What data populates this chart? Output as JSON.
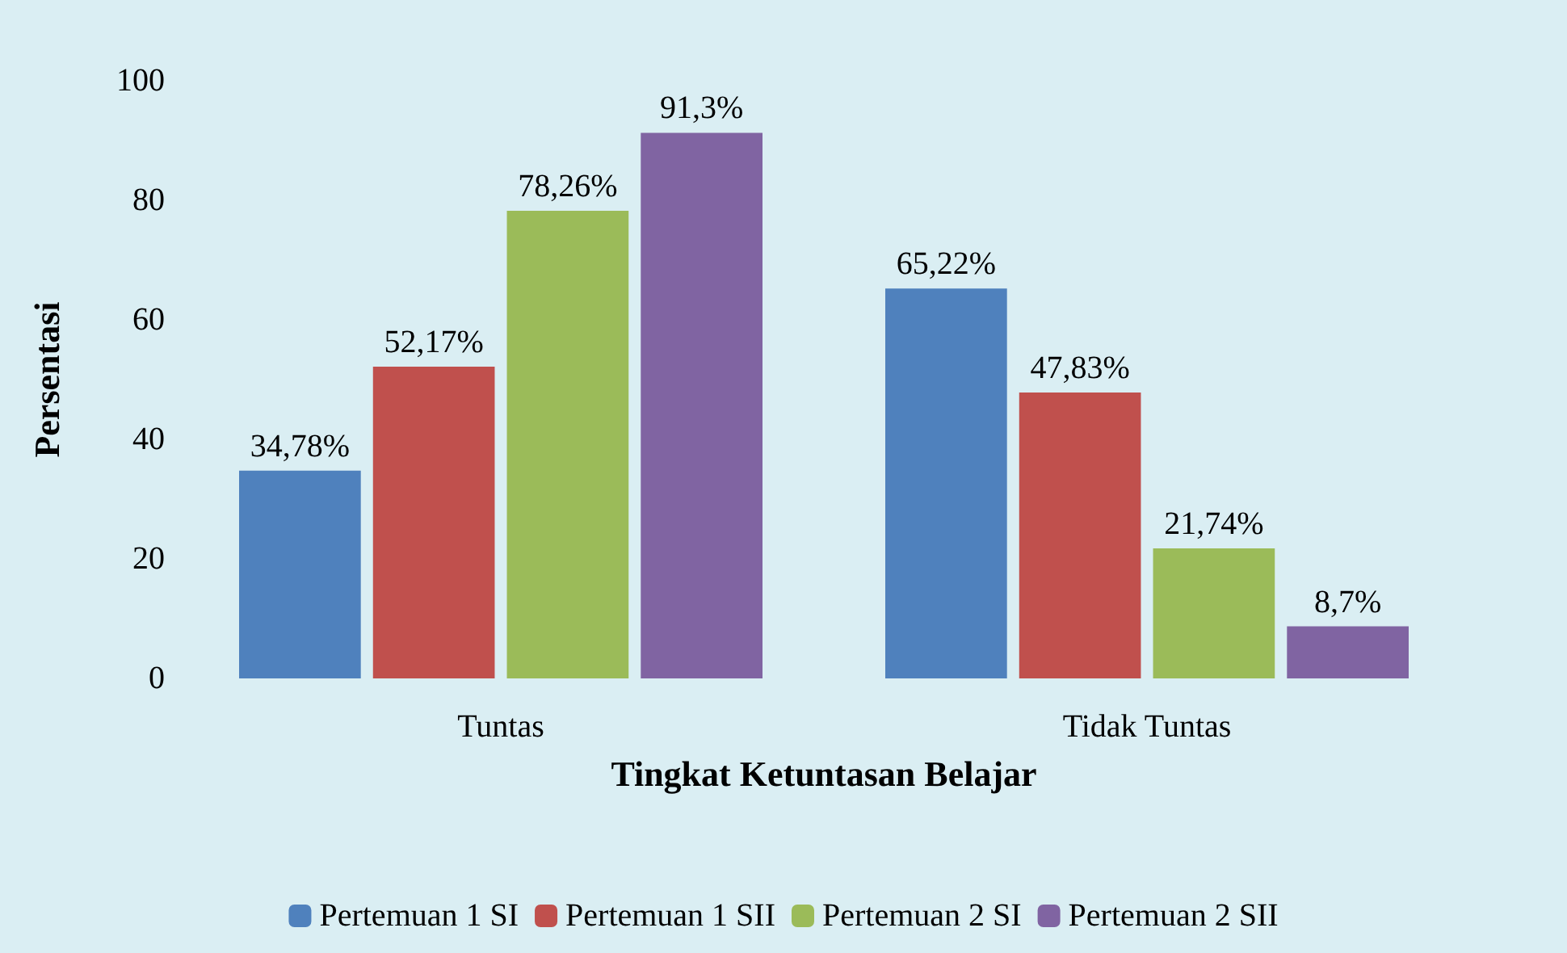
{
  "chart_data": {
    "type": "bar",
    "xlabel": "Tingkat Ketuntasan Belajar",
    "ylabel": "Persentasi",
    "categories": [
      "Tuntas",
      "Tidak Tuntas"
    ],
    "series": [
      {
        "name": "Pertemuan 1 SI",
        "color": "#4f81bd",
        "values": [
          34.78,
          65.22
        ],
        "value_labels": [
          "34,78%",
          "65,22%"
        ]
      },
      {
        "name": "Pertemuan 1 SII",
        "color": "#c0504d",
        "values": [
          52.17,
          47.83
        ],
        "value_labels": [
          "52,17%",
          "47,83%"
        ]
      },
      {
        "name": "Pertemuan 2 SI",
        "color": "#9bbb59",
        "values": [
          78.26,
          21.74
        ],
        "value_labels": [
          "78,26%",
          "21,74%"
        ]
      },
      {
        "name": "Pertemuan 2 SII",
        "color": "#8064a2",
        "values": [
          91.3,
          8.7
        ],
        "value_labels": [
          "91,3%",
          "8,7%"
        ]
      }
    ],
    "ylim": [
      0,
      100
    ],
    "yticks": [
      0,
      20,
      40,
      60,
      80,
      100
    ],
    "grid": false,
    "legend": "bottom"
  }
}
